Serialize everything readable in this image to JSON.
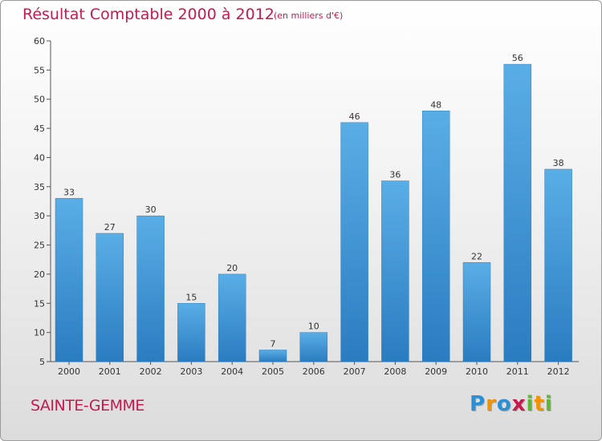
{
  "chart_data": {
    "type": "bar",
    "title": "Résultat Comptable 2000 à 2012",
    "units": "(en milliers d'€)",
    "categories": [
      "2000",
      "2001",
      "2002",
      "2003",
      "2004",
      "2005",
      "2006",
      "2007",
      "2008",
      "2009",
      "2010",
      "2011",
      "2012"
    ],
    "values": [
      33,
      27,
      30,
      15,
      20,
      7,
      10,
      46,
      36,
      48,
      22,
      56,
      38
    ],
    "ylim": [
      5,
      60
    ],
    "yticks": [
      5,
      10,
      15,
      20,
      25,
      30,
      35,
      40,
      45,
      50,
      55,
      60
    ],
    "xlabel": "",
    "ylabel": "",
    "grid": false,
    "colors": {
      "bar_light": "#5aaee6",
      "bar_dark": "#2a7cc0",
      "text_accent": "#c8184f"
    }
  },
  "footer": {
    "commune": "SAINTE-GEMME",
    "logo_letters": [
      "P",
      "r",
      "o",
      "x",
      "i",
      "t",
      "i"
    ],
    "logo_colors": [
      "#2b8fd6",
      "#f39200",
      "#2b8fd6",
      "#c8184f",
      "#5db832",
      "#f39200",
      "#5db832"
    ]
  }
}
